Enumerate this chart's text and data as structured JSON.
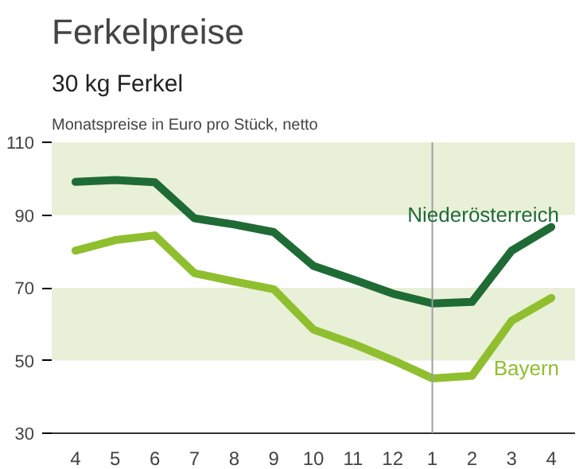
{
  "chart_data": {
    "type": "line",
    "title": "Ferkelpreise",
    "subtitle": "30 kg Ferkel",
    "annotations": [
      "Monatspreise in Euro pro Stück, netto"
    ],
    "categories": [
      "4",
      "5",
      "6",
      "7",
      "8",
      "9",
      "10",
      "11",
      "12",
      "1",
      "2",
      "3",
      "4"
    ],
    "series": [
      {
        "name": "Niederösterreich",
        "color": "#1f6b36",
        "values": [
          99.1,
          99.6,
          99,
          89.1,
          87.4,
          85.3,
          76,
          72.3,
          68.4,
          65.7,
          66.1,
          80.2,
          86.7
        ]
      },
      {
        "name": "Bayern",
        "color": "#8fbf2f",
        "values": [
          80.2,
          83.1,
          84.4,
          74,
          71.7,
          69.6,
          58.5,
          54.6,
          50.1,
          45.1,
          45.8,
          60.9,
          67.2
        ]
      }
    ],
    "ylim": [
      30,
      110
    ],
    "yticks": [
      30,
      50,
      70,
      90,
      110
    ],
    "grid": false,
    "ref_lines": [
      {
        "axis": "x",
        "value": "1",
        "color": "#a0a0a0"
      }
    ],
    "bands": [
      {
        "axis": "y",
        "from": 50,
        "to": 70,
        "color": "#e9f0d8"
      },
      {
        "axis": "y",
        "from": 90,
        "to": 110,
        "color": "#e9f0d8"
      }
    ]
  }
}
